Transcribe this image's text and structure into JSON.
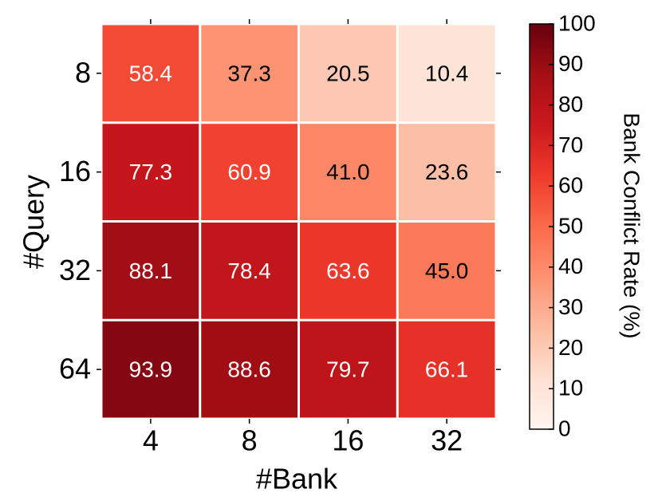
{
  "chart_data": {
    "type": "heatmap",
    "x_label": "#Bank",
    "y_label": "#Query",
    "x_categories": [
      "4",
      "8",
      "16",
      "32"
    ],
    "y_categories": [
      "8",
      "16",
      "32",
      "64"
    ],
    "values": [
      [
        58.4,
        37.3,
        20.5,
        10.4
      ],
      [
        77.3,
        60.9,
        41.0,
        23.6
      ],
      [
        88.1,
        78.4,
        63.6,
        45.0
      ],
      [
        93.9,
        88.6,
        79.7,
        66.1
      ]
    ],
    "value_labels": [
      [
        "58.4",
        "37.3",
        "20.5",
        "10.4"
      ],
      [
        "77.3",
        "60.9",
        "41.0",
        "23.6"
      ],
      [
        "88.1",
        "78.4",
        "63.6",
        "45.0"
      ],
      [
        "93.9",
        "88.6",
        "79.7",
        "66.1"
      ]
    ],
    "colormap": "Reds",
    "colorbar_label": "Bank Conflict Rate (%)",
    "clim": [
      0,
      100
    ],
    "cticks": [
      0,
      10,
      20,
      30,
      40,
      50,
      60,
      70,
      80,
      90,
      100
    ]
  }
}
